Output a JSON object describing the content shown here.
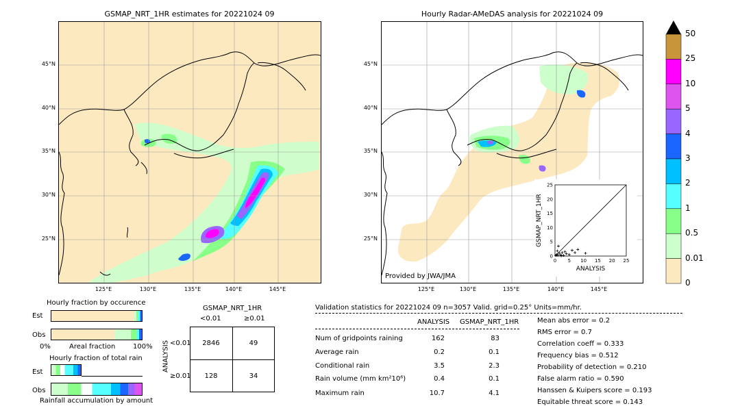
{
  "left_map": {
    "title": "GSMAP_NRT_1HR estimates for 20221024 09",
    "lat_labels": [
      "45°N",
      "40°N",
      "35°N",
      "30°N",
      "25°N"
    ],
    "lon_labels": [
      "125°E",
      "130°E",
      "135°E",
      "140°E",
      "145°E"
    ]
  },
  "right_map": {
    "title": "Hourly Radar-AMeDAS analysis for 20221024 09",
    "lat_labels": [
      "45°N",
      "40°N",
      "35°N",
      "30°N",
      "25°N"
    ],
    "lon_labels": [
      "125°E",
      "130°E",
      "135°E",
      "140°E",
      "145°E"
    ],
    "credit": "Provided by JWA/JMA"
  },
  "colorbar": {
    "labels": [
      "50",
      "25",
      "10",
      "5",
      "4",
      "3",
      "2",
      "1",
      "0.5",
      "0.01",
      "0"
    ],
    "colors": [
      "#c8953a",
      "#ff00ff",
      "#dd55ee",
      "#9966ff",
      "#1a66ff",
      "#00bfff",
      "#55ffff",
      "#88ff88",
      "#ccffcc",
      "#fde9c0"
    ],
    "extend_color": "#000000"
  },
  "fraction_occurrence": {
    "title": "Hourly fraction by occurence",
    "rows": [
      "Est",
      "Obs"
    ],
    "xlabel_left": "0%",
    "xlabel_mid": "Areal fraction",
    "xlabel_right": "100%"
  },
  "fraction_total": {
    "title": "Hourly fraction of total rain",
    "rows": [
      "Est",
      "Obs"
    ],
    "xlabel": "Rainfall accumulation by amount"
  },
  "contingency": {
    "title": "GSMAP_NRT_1HR",
    "col_labels": [
      "<0.01",
      "≥0.01"
    ],
    "row_labels": [
      "<0.01",
      "≥0.01"
    ],
    "ylabel": "ANALYSIS",
    "cells": [
      [
        "2846",
        "49"
      ],
      [
        "128",
        "34"
      ]
    ]
  },
  "validation": {
    "header": "Validation statistics for 20221024 09  n=3057 Valid. grid=0.25° Units=mm/hr.",
    "col_analysis": "ANALYSIS",
    "col_gsmap": "GSMAP_NRT_1HR",
    "rows": [
      {
        "label": "Num of gridpoints raining",
        "analysis": "162",
        "gsmap": "83"
      },
      {
        "label": "Average rain",
        "analysis": "0.2",
        "gsmap": "0.1"
      },
      {
        "label": "Conditional rain",
        "analysis": "3.5",
        "gsmap": "2.3"
      },
      {
        "label": "Rain volume (mm km²10⁶)",
        "analysis": "0.4",
        "gsmap": "0.1"
      },
      {
        "label": "Maximum rain",
        "analysis": "10.7",
        "gsmap": "4.1"
      }
    ],
    "scores": [
      "Mean abs error =    0.2",
      "RMS error =    0.7",
      "Correlation coeff =  0.333",
      "Frequency bias =  0.512",
      "Probability of detection =  0.210",
      "False alarm ratio =  0.590",
      "Hanssen & Kuipers score =  0.193",
      "Equitable threat score =  0.143"
    ]
  },
  "chart_data": [
    {
      "type": "scatter",
      "xlabel": "ANALYSIS",
      "ylabel": "GSMAP_NRT_1HR",
      "xlim": [
        0,
        25
      ],
      "ylim": [
        0,
        25
      ],
      "xticks": [
        "0",
        "5",
        "10",
        "15",
        "20",
        "25"
      ],
      "yticks": [
        "0",
        "5",
        "10",
        "15",
        "20",
        "25"
      ],
      "x": [
        0.3,
        0.6,
        1.0,
        1.5,
        2.0,
        2.5,
        3.0,
        3.5,
        4.0,
        5.0,
        6.0,
        7.0,
        8.0,
        10.7,
        1.2,
        2.2,
        0.8
      ],
      "y": [
        0.2,
        0.5,
        0.3,
        1.0,
        0.4,
        1.2,
        0.2,
        1.5,
        0.8,
        0.5,
        2.0,
        1.2,
        2.3,
        1.0,
        3.5,
        0.1,
        1.8
      ]
    },
    {
      "type": "table",
      "title": "GSMAP_NRT_1HR",
      "columns": [
        "<0.01",
        "≥0.01"
      ],
      "rows": [
        "<0.01",
        "≥0.01"
      ],
      "values": [
        [
          2846,
          49
        ],
        [
          128,
          34
        ]
      ]
    }
  ]
}
